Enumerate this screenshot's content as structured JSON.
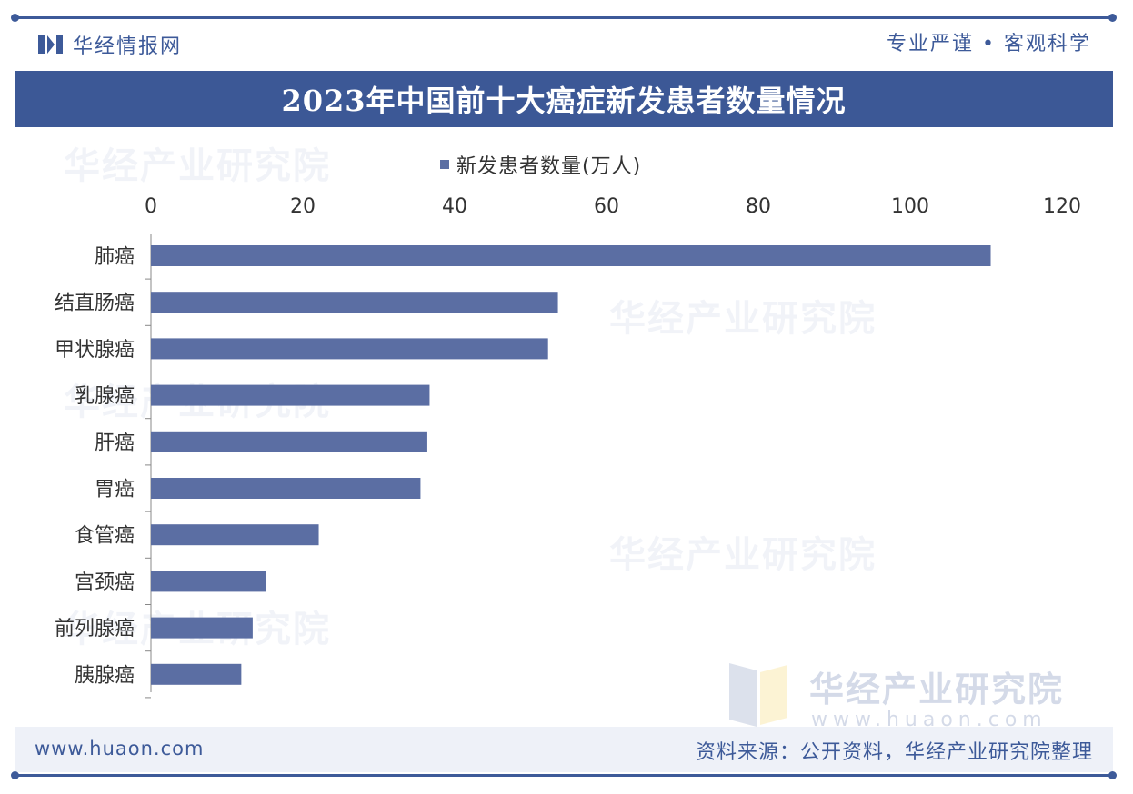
{
  "brand": {
    "name": "华经情报网",
    "slogan": "专业严谨 • 客观科学"
  },
  "watermark": {
    "name": "华经产业研究院",
    "url": "www.huaon.com"
  },
  "footer": {
    "site": "www.huaon.com",
    "source": "资料来源：公开资料，华经产业研究院整理"
  },
  "colors": {
    "bar": "#5b6ea3",
    "title_bar": "#3c5896",
    "accent": "#3d5a99"
  },
  "chart_data": {
    "type": "bar",
    "orientation": "horizontal",
    "title": "2023年中国前十大癌症新发患者数量情况",
    "categories": [
      "肺癌",
      "结直肠癌",
      "甲状腺癌",
      "乳腺癌",
      "肝癌",
      "胃癌",
      "食管癌",
      "宫颈癌",
      "前列腺癌",
      "胰腺癌"
    ],
    "series": [
      {
        "name": "新发患者数量(万人)",
        "values": [
          110.6,
          53.6,
          52.3,
          36.7,
          36.4,
          35.5,
          22.1,
          15.1,
          13.4,
          11.9
        ]
      }
    ],
    "xticks": [
      "0",
      "20",
      "40",
      "60",
      "80",
      "100",
      "120"
    ],
    "xlim": [
      0,
      120
    ],
    "xaxis_position": "top",
    "legend_position": "top",
    "grid": false
  }
}
